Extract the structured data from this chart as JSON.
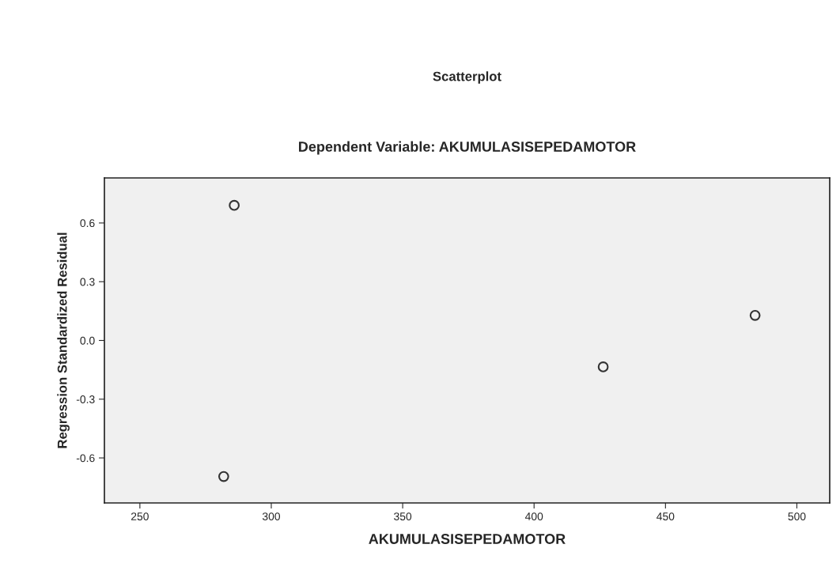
{
  "chart_data": {
    "type": "scatter",
    "title": "Scatterplot",
    "subtitle": "Dependent Variable: AKUMULASISEPEDAMOTOR",
    "xlabel": "AKUMULASISEPEDAMOTOR",
    "ylabel": "Regression Standardized Residual",
    "x": [
      285.9,
      281.9,
      426.3,
      484.1
    ],
    "series": [
      {
        "color": "#333333",
        "values": [
          0.69,
          -0.695,
          -0.135,
          0.128
        ]
      }
    ],
    "marker": "circle",
    "xlim": [
      236.5,
      512.5
    ],
    "xticks": [
      250,
      300,
      350,
      400,
      450,
      500
    ],
    "ylim": [
      -0.83,
      0.83
    ],
    "yticks": [
      {
        "value": -0.6,
        "label": "-0.6"
      },
      {
        "value": -0.3,
        "label": "-0.3"
      },
      {
        "value": 0,
        "label": "0.0"
      },
      0.3,
      0.6
    ],
    "grid": false,
    "legend": false
  }
}
